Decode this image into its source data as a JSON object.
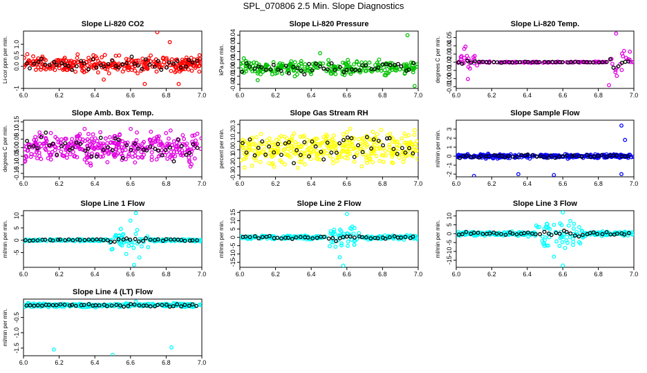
{
  "figure": {
    "title": "SPL_070806  2.5 Min. Slope Diagnostics"
  },
  "colors": {
    "axis": "#000000",
    "highlight": "#000000"
  },
  "chart_data": [
    {
      "type": "scatter",
      "title": "Slope Li-820 CO2",
      "ylabel": "Li-cor ppm per min.",
      "color": "#ff0000",
      "xlim": [
        6.0,
        7.0
      ],
      "ylim": [
        -1.0,
        1.6
      ],
      "xticks": [
        "6.0",
        "6.2",
        "6.4",
        "6.6",
        "6.8",
        "7.0"
      ],
      "yticks": [
        {
          "v": -1,
          "label": "-1"
        },
        {
          "v": 0,
          "label": "0.0"
        },
        {
          "v": 0.5,
          "label": "0.5"
        },
        {
          "v": 1.0,
          "label": "1.0"
        }
      ],
      "center": 0.1,
      "spread": 0.25,
      "n": 300,
      "outliers": [
        [
          6.75,
          1.55
        ],
        [
          6.82,
          1.1
        ],
        [
          6.68,
          -0.8
        ],
        [
          6.87,
          -0.8
        ],
        [
          6.45,
          -0.6
        ]
      ]
    },
    {
      "type": "scatter",
      "title": "Slope Li-820 Pressure",
      "ylabel": "kPa per min.",
      "color": "#00c000",
      "xlim": [
        6.0,
        7.0
      ],
      "ylim": [
        -0.025,
        0.045
      ],
      "xticks": [
        "6.0",
        "6.2",
        "6.4",
        "6.6",
        "6.8",
        "7.0"
      ],
      "yticks": [
        {
          "v": -0.02,
          "label": "-0.02"
        },
        {
          "v": -0.01,
          "label": "-0.01"
        },
        {
          "v": 0.0,
          "label": "0.00"
        },
        {
          "v": 0.01,
          "label": "0.01"
        },
        {
          "v": 0.02,
          "label": "0.02"
        },
        {
          "v": 0.03,
          "label": "0.03"
        },
        {
          "v": 0.04,
          "label": "0.04"
        }
      ],
      "center": 0.0,
      "spread": 0.006,
      "n": 260,
      "outliers": [
        [
          6.94,
          0.04
        ],
        [
          6.98,
          -0.022
        ],
        [
          6.1,
          -0.015
        ],
        [
          6.45,
          0.018
        ]
      ]
    },
    {
      "type": "scatter",
      "title": "Slope Li-820 Temp.",
      "ylabel": "degrees C per min.",
      "color": "#e000e0",
      "xlim": [
        6.0,
        7.0
      ],
      "ylim": [
        -0.012,
        0.058
      ],
      "xticks": [
        "6.0",
        "6.2",
        "6.4",
        "6.6",
        "6.8",
        "7.0"
      ],
      "yticks": [
        {
          "v": -0.01,
          "label": "-0.01"
        },
        {
          "v": 0.0,
          "label": "0.00"
        },
        {
          "v": 0.01,
          "label": "0.01"
        },
        {
          "v": 0.02,
          "label": "0.02"
        },
        {
          "v": 0.03,
          "label": "0.03"
        },
        {
          "v": 0.04,
          "label": "0.04"
        },
        {
          "v": 0.05,
          "label": "0.05"
        }
      ],
      "center": 0.02,
      "spread": 0.0005,
      "n": 160,
      "burst": [
        [
          6.02,
          6.12,
          0.02,
          0.012
        ],
        [
          6.85,
          6.98,
          0.02,
          0.016
        ]
      ],
      "outliers": [
        [
          6.9,
          0.055
        ],
        [
          6.86,
          -0.008
        ]
      ]
    },
    {
      "type": "scatter",
      "title": "Slope Amb. Box Temp.",
      "ylabel": "degrees C per min.",
      "color": "#e000e0",
      "xlim": [
        6.0,
        7.0
      ],
      "ylim": [
        -0.17,
        0.16
      ],
      "xticks": [
        "6.0",
        "6.2",
        "6.4",
        "6.6",
        "6.8",
        "7.0"
      ],
      "yticks": [
        {
          "v": -0.15,
          "label": "-0.15"
        },
        {
          "v": -0.1,
          "label": "-0.10"
        },
        {
          "v": -0.05,
          "label": "-0.05"
        },
        {
          "v": 0.0,
          "label": "0.00"
        },
        {
          "v": 0.05,
          "label": "0.05"
        },
        {
          "v": 0.1,
          "label": "0.10"
        },
        {
          "v": 0.15,
          "label": "0.15"
        }
      ],
      "center": 0.0,
      "spread": 0.06,
      "n": 360,
      "outliers": []
    },
    {
      "type": "scatter",
      "title": "Slope Gas Stream RH",
      "ylabel": "percent per min.",
      "color": "#ffff00",
      "xlim": [
        6.0,
        7.0
      ],
      "ylim": [
        -0.32,
        0.35
      ],
      "xticks": [
        "6.0",
        "6.2",
        "6.4",
        "6.6",
        "6.8",
        "7.0"
      ],
      "yticks": [
        {
          "v": -0.3,
          "label": "-0.3"
        },
        {
          "v": -0.2,
          "label": "-0.2"
        },
        {
          "v": -0.1,
          "label": "-0.1"
        },
        {
          "v": 0.0,
          "label": "0.0"
        },
        {
          "v": 0.1,
          "label": "0.1"
        },
        {
          "v": 0.2,
          "label": "0.2"
        },
        {
          "v": 0.3,
          "label": "0.3"
        }
      ],
      "center": 0.02,
      "spread": 0.13,
      "n": 380,
      "outliers": []
    },
    {
      "type": "scatter",
      "title": "Slope Sample Flow",
      "ylabel": "ml/min per min.",
      "color": "#0000ff",
      "xlim": [
        6.0,
        7.0
      ],
      "ylim": [
        -2.3,
        4.0
      ],
      "xticks": [
        "6.0",
        "6.2",
        "6.4",
        "6.6",
        "6.8",
        "7.0"
      ],
      "yticks": [
        {
          "v": -2,
          "label": "-2"
        },
        {
          "v": -1,
          "label": "-1"
        },
        {
          "v": 0,
          "label": "0"
        },
        {
          "v": 1,
          "label": "1"
        },
        {
          "v": 2,
          "label": "2"
        },
        {
          "v": 3,
          "label": "3"
        }
      ],
      "center": 0.0,
      "spread": 0.15,
      "n": 320,
      "outliers": [
        [
          6.93,
          3.4
        ],
        [
          6.95,
          1.8
        ],
        [
          6.35,
          -2.0
        ],
        [
          6.1,
          -2.2
        ],
        [
          6.93,
          -2.0
        ],
        [
          6.55,
          -2.1
        ]
      ]
    },
    {
      "type": "scatter",
      "title": "Slope Line 1 Flow",
      "ylabel": "ml/min per min.",
      "color": "#00ffff",
      "xlim": [
        6.0,
        7.0
      ],
      "ylim": [
        -11,
        12
      ],
      "xticks": [
        "6.0",
        "6.2",
        "6.4",
        "6.6",
        "6.8",
        "7.0"
      ],
      "yticks": [
        {
          "v": -5,
          "label": "-5"
        },
        {
          "v": 0,
          "label": "0"
        },
        {
          "v": 5,
          "label": "5"
        },
        {
          "v": 10,
          "label": "10"
        }
      ],
      "center": 0.0,
      "spread": 0.3,
      "n": 240,
      "burst": [
        [
          6.48,
          6.7,
          0.0,
          3.5
        ]
      ],
      "outliers": [
        [
          6.63,
          11
        ],
        [
          6.6,
          8
        ],
        [
          6.62,
          -10
        ],
        [
          6.65,
          -7
        ]
      ]
    },
    {
      "type": "scatter",
      "title": "Slope Line 2 Flow",
      "ylabel": "ml/min per min.",
      "color": "#00ffff",
      "xlim": [
        6.0,
        7.0
      ],
      "ylim": [
        -18,
        16
      ],
      "xticks": [
        "6.0",
        "6.2",
        "6.4",
        "6.6",
        "6.8",
        "7.0"
      ],
      "yticks": [
        {
          "v": -15,
          "label": "-15"
        },
        {
          "v": -10,
          "label": "-10"
        },
        {
          "v": -5,
          "label": "-5"
        },
        {
          "v": 0,
          "label": "0"
        },
        {
          "v": 5,
          "label": "5"
        },
        {
          "v": 10,
          "label": "10"
        },
        {
          "v": 15,
          "label": "15"
        }
      ],
      "center": 0.0,
      "spread": 0.8,
      "n": 240,
      "burst": [
        [
          6.5,
          6.68,
          0.0,
          5.0
        ]
      ],
      "outliers": [
        [
          6.6,
          14
        ],
        [
          6.58,
          -17
        ],
        [
          6.56,
          -12
        ]
      ]
    },
    {
      "type": "scatter",
      "title": "Slope Line 3 Flow",
      "ylabel": "ml/min per min.",
      "color": "#00ffff",
      "xlim": [
        6.0,
        7.0
      ],
      "ylim": [
        -19,
        13
      ],
      "xticks": [
        "6.0",
        "6.2",
        "6.4",
        "6.6",
        "6.8",
        "7.0"
      ],
      "yticks": [
        {
          "v": -15,
          "label": "-15"
        },
        {
          "v": -10,
          "label": "-10"
        },
        {
          "v": -5,
          "label": "-5"
        },
        {
          "v": 0,
          "label": "0"
        },
        {
          "v": 5,
          "label": "5"
        },
        {
          "v": 10,
          "label": "10"
        }
      ],
      "center": 0.0,
      "spread": 0.8,
      "n": 260,
      "burst": [
        [
          6.45,
          6.72,
          0.0,
          5.5
        ]
      ],
      "outliers": [
        [
          6.6,
          12
        ],
        [
          6.6,
          -18
        ],
        [
          6.55,
          -13
        ]
      ]
    },
    {
      "type": "scatter",
      "title": "Slope Line 4 (LT) Flow",
      "ylabel": "ml/min per min.",
      "color": "#00ffff",
      "xlim": [
        6.0,
        7.0
      ],
      "ylim": [
        -1.75,
        0.1
      ],
      "xticks": [
        "6.0",
        "6.2",
        "6.4",
        "6.6",
        "6.8",
        "7.0"
      ],
      "yticks": [
        {
          "v": -1.5,
          "label": "-1.5"
        },
        {
          "v": -1.0,
          "label": "-1.0"
        },
        {
          "v": -0.5,
          "label": "-0.5"
        }
      ],
      "center": -0.1,
      "spread": 0.04,
      "n": 300,
      "outliers": [
        [
          6.17,
          -1.55
        ],
        [
          6.5,
          -1.72
        ],
        [
          6.83,
          -1.48
        ],
        [
          6.63,
          0.02
        ]
      ]
    }
  ]
}
